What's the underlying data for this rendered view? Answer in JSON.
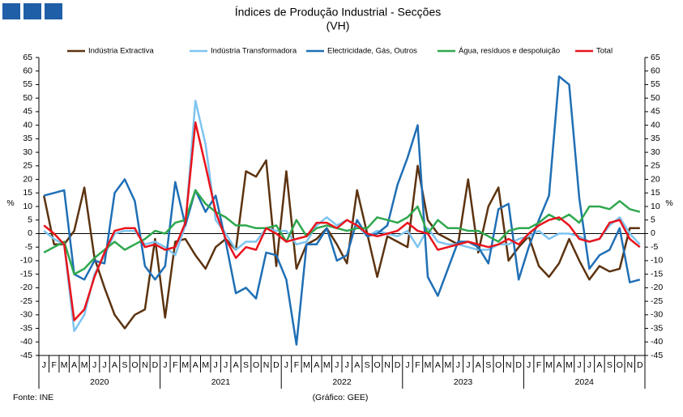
{
  "chart_data": {
    "type": "line",
    "title": "Índices de Produção Industrial - Secções",
    "subtitle": "(VH)",
    "ylabel": "%",
    "y2label": "%",
    "source": "Fonte: INE",
    "credit": "(Gráfico: GEE)",
    "categories": [
      "J",
      "F",
      "M",
      "A",
      "M",
      "J",
      "J",
      "A",
      "S",
      "O",
      "N",
      "D",
      "J",
      "F",
      "M",
      "A",
      "M",
      "J",
      "J",
      "A",
      "S",
      "O",
      "N",
      "D",
      "J",
      "F",
      "M",
      "A",
      "M",
      "J",
      "J",
      "A",
      "S",
      "O",
      "N",
      "D",
      "J",
      "F",
      "M",
      "A",
      "M",
      "J",
      "J",
      "A",
      "S",
      "O",
      "N",
      "D",
      "J",
      "F",
      "M",
      "A",
      "M",
      "J",
      "J",
      "A",
      "S",
      "O",
      "N",
      "D"
    ],
    "years": [
      "2020",
      "2021",
      "2022",
      "2023",
      "2024"
    ],
    "ylim": [
      -45,
      65
    ],
    "yticks": [
      -45,
      -40,
      -35,
      -30,
      -25,
      -20,
      -15,
      -10,
      -5,
      0,
      5,
      10,
      15,
      20,
      25,
      30,
      35,
      40,
      45,
      50,
      55,
      60,
      65
    ],
    "y2lim": [
      -45,
      65
    ],
    "y2ticks": [
      -45,
      -40,
      -35,
      -30,
      -25,
      -20,
      -15,
      -10,
      -5,
      0,
      5,
      10,
      15,
      20,
      25,
      30,
      35,
      40,
      45,
      50,
      55,
      60,
      65
    ],
    "series": [
      {
        "name": "Indústria Extractiva",
        "color": "#5c3310",
        "values": [
          14,
          -4,
          -4,
          1,
          17,
          -9,
          -20,
          -30,
          -35,
          -30,
          -28,
          -2,
          -31,
          -3,
          -2,
          -8,
          -13,
          -5,
          -2,
          -6,
          23,
          21,
          27,
          -12,
          23,
          -13,
          -4,
          -2,
          2,
          -4,
          -11,
          16,
          0,
          -16,
          -1,
          -3,
          -5,
          25,
          5,
          0,
          -2,
          -4,
          20,
          -7,
          10,
          17,
          -10,
          -5,
          -1,
          -12,
          -16,
          -11,
          -2,
          -10,
          -17,
          -12,
          -14,
          -13,
          2,
          2
        ]
      },
      {
        "name": "Indústria Transformadora",
        "color": "#7ec4f0",
        "values": [
          1,
          -2,
          -4,
          -36,
          -30,
          -15,
          -8,
          0,
          1,
          1,
          -4,
          -3,
          -5,
          -8,
          3,
          49,
          33,
          5,
          0,
          -6,
          -3,
          -3,
          2,
          1,
          1,
          -4,
          -3,
          3,
          6,
          3,
          5,
          3,
          -1,
          1,
          0,
          -1,
          1,
          -5,
          2,
          -3,
          -4,
          -4,
          -5,
          -6,
          -6,
          -4,
          -4,
          -2,
          -1,
          1,
          -2,
          0,
          0,
          -1,
          -3,
          -2,
          3,
          6,
          0,
          -4
        ]
      },
      {
        "name": "Electricidade, Gás, Outros",
        "color": "#1f6fb5",
        "values": [
          14,
          15,
          16,
          -15,
          -17,
          -10,
          -11,
          15,
          20,
          12,
          -12,
          -17,
          -12,
          19,
          3,
          16,
          8,
          14,
          -3,
          -22,
          -20,
          -24,
          -7,
          -8,
          -17,
          -41,
          -4,
          -4,
          2,
          -10,
          -8,
          5,
          -1,
          0,
          3,
          18,
          28,
          40,
          -16,
          -23,
          -13,
          -3,
          -3,
          -5,
          -11,
          9,
          11,
          -17,
          -5,
          5,
          14,
          58,
          55,
          13,
          -13,
          -8,
          -6,
          2,
          -18,
          -17
        ]
      },
      {
        "name": "Água, resíduos e despoluição",
        "color": "#2fa84f",
        "values": [
          -7,
          -5,
          -3,
          -15,
          -13,
          -9,
          -6,
          -3,
          -6,
          -4,
          -2,
          1,
          0,
          4,
          5,
          16,
          11,
          8,
          6,
          3,
          3,
          2,
          2,
          3,
          -3,
          5,
          -1,
          2,
          3,
          2,
          1,
          2,
          2,
          6,
          5,
          4,
          6,
          10,
          0,
          5,
          2,
          2,
          1,
          1,
          -1,
          -3,
          1,
          2,
          2,
          4,
          7,
          5,
          7,
          4,
          10,
          10,
          9,
          12,
          9,
          8
        ]
      },
      {
        "name": "Total",
        "color": "#e8141c",
        "values": [
          3,
          0,
          -4,
          -32,
          -28,
          -16,
          -7,
          1,
          2,
          2,
          -5,
          -4,
          -6,
          -5,
          4,
          41,
          25,
          8,
          -2,
          -9,
          -5,
          -6,
          2,
          0,
          -3,
          -2,
          -1,
          4,
          4,
          2,
          5,
          3,
          0,
          -1,
          0,
          1,
          4,
          1,
          0,
          -6,
          -5,
          -4,
          -3,
          -4,
          -5,
          -4,
          -2,
          -4,
          0,
          3,
          5,
          6,
          3,
          -2,
          -3,
          -2,
          4,
          5,
          -2,
          -5
        ]
      }
    ]
  }
}
